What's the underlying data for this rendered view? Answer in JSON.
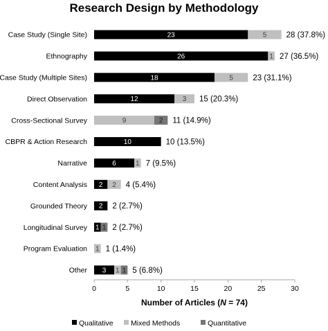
{
  "chart_data": {
    "type": "bar",
    "orientation": "horizontal",
    "stacked": true,
    "title": "Research Design by Methodology",
    "xlabel_parts": [
      "Number of Articles (",
      "N",
      " = 74)"
    ],
    "xlim": [
      0,
      30
    ],
    "xticks": [
      0,
      5,
      10,
      15,
      20,
      25,
      30
    ],
    "grid": false,
    "legend_position": "bottom",
    "categories": [
      "Case Study (Single Site)",
      "Ethnography",
      "Case Study (Multiple Sites)",
      "Direct Observation",
      "Cross-Sectional Survey",
      "CBPR & Action Research",
      "Narrative",
      "Content Analysis",
      "Grounded Theory",
      "Longitudinal Survey",
      "Program Evaluation",
      "Other"
    ],
    "series": [
      {
        "name": "Qualitative",
        "color": "#000000",
        "label_color": "#ffffff",
        "values": [
          23,
          26,
          18,
          12,
          0,
          10,
          6,
          2,
          2,
          1,
          0,
          3
        ]
      },
      {
        "name": "Mixed Methods",
        "color": "#bfbfbf",
        "label_color": "#404040",
        "values": [
          5,
          1,
          5,
          3,
          9,
          0,
          1,
          2,
          0,
          0,
          1,
          1
        ]
      },
      {
        "name": "Quantitative",
        "color": "#767676",
        "label_color": "#1a1a1a",
        "values": [
          0,
          0,
          0,
          0,
          2,
          0,
          0,
          0,
          0,
          1,
          0,
          1
        ]
      }
    ],
    "totals": [
      "28 (37.8%)",
      "27 (36.5%)",
      "23 (31.1%)",
      "15 (20.3%)",
      "11 (14.9%)",
      "10 (13.5%)",
      "7 (9.5%)",
      "4 (5.4%)",
      "2 (2.7%)",
      "2 (2.7%)",
      "1 (1.4%)",
      "5 (6.8%)"
    ]
  }
}
